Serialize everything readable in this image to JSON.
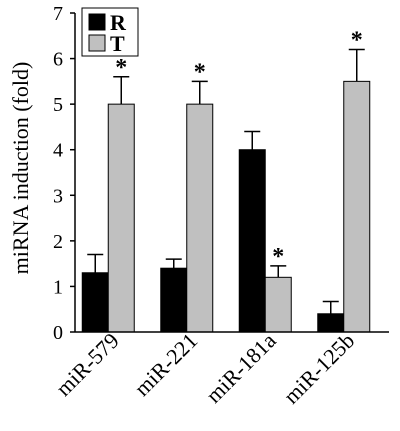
{
  "chart_data": {
    "type": "bar",
    "title": "",
    "xlabel": "",
    "ylabel": "miRNA induction (fold)",
    "ylim": [
      0,
      7
    ],
    "yticks": [
      "0",
      "1",
      "2",
      "3",
      "4",
      "5",
      "6",
      "7"
    ],
    "categories": [
      "miR-579",
      "miR-221",
      "miR-181a",
      "miR-125b"
    ],
    "series": [
      {
        "name": "R",
        "color": "#000000",
        "values": [
          1.3,
          1.4,
          4.0,
          0.4
        ],
        "errors": [
          0.4,
          0.2,
          0.4,
          0.27
        ],
        "significant": [
          false,
          false,
          false,
          false
        ]
      },
      {
        "name": "T",
        "color": "#c0c0c0",
        "values": [
          5.0,
          5.0,
          1.2,
          5.5
        ],
        "errors": [
          0.6,
          0.5,
          0.25,
          0.7
        ],
        "significant": [
          true,
          true,
          true,
          true
        ]
      }
    ],
    "significance_marker": "*",
    "legend": {
      "position": "top-left",
      "entries": [
        "R",
        "T"
      ]
    },
    "grid": false
  }
}
